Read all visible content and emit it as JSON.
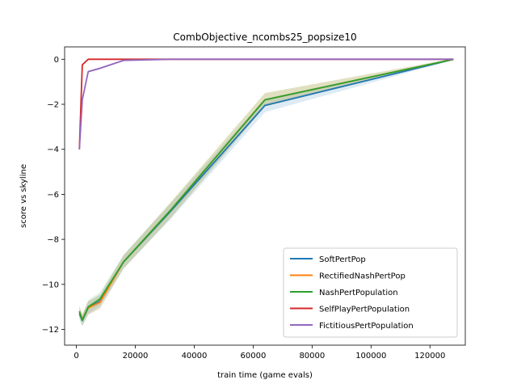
{
  "chart_data": {
    "type": "line",
    "title": "CombObjective_ncombs25_popsize10",
    "xlabel": "train time (game evals)",
    "ylabel": "score vs skyline",
    "xlim": [
      -4000,
      132000
    ],
    "ylim": [
      -12.7,
      0.55
    ],
    "xticks": [
      0,
      20000,
      40000,
      60000,
      80000,
      100000,
      120000
    ],
    "xtick_labels": [
      "0",
      "20000",
      "40000",
      "60000",
      "80000",
      "100000",
      "120000"
    ],
    "yticks": [
      0,
      -2,
      -4,
      -6,
      -8,
      -10,
      -12
    ],
    "ytick_labels": [
      "0",
      "−2",
      "−4",
      "−6",
      "−8",
      "−10",
      "−12"
    ],
    "grid": false,
    "legend_position": "lower-right",
    "series": [
      {
        "name": "SoftPertPop",
        "color": "#1f77b4",
        "x": [
          1000,
          2000,
          4000,
          8000,
          16000,
          32000,
          64000,
          128000
        ],
        "y": [
          -11.3,
          -11.6,
          -11.05,
          -10.75,
          -9.0,
          -6.75,
          -2.05,
          0.0
        ],
        "band": [
          0.25,
          0.25,
          0.3,
          0.3,
          0.3,
          0.35,
          0.3,
          0.03
        ]
      },
      {
        "name": "RectifiedNashPertPop",
        "color": "#ff7f0e",
        "x": [
          1000,
          2000,
          4000,
          8000,
          16000,
          32000,
          64000,
          128000
        ],
        "y": [
          -11.2,
          -11.55,
          -11.05,
          -10.8,
          -9.0,
          -6.7,
          -1.8,
          0.0
        ],
        "band": [
          0.25,
          0.25,
          0.3,
          0.3,
          0.3,
          0.35,
          0.3,
          0.03
        ]
      },
      {
        "name": "NashPertPopulation",
        "color": "#2ca02c",
        "x": [
          1000,
          2000,
          4000,
          8000,
          16000,
          32000,
          64000,
          128000
        ],
        "y": [
          -11.2,
          -11.6,
          -11.0,
          -10.65,
          -9.0,
          -6.7,
          -1.8,
          0.0
        ],
        "band": [
          0.25,
          0.25,
          0.3,
          0.3,
          0.3,
          0.35,
          0.3,
          0.03
        ]
      },
      {
        "name": "SelfPlayPertPopulation",
        "color": "#d62728",
        "x": [
          1000,
          2000,
          4000,
          8000,
          16000,
          32000,
          64000,
          128000
        ],
        "y": [
          -4.0,
          -0.25,
          0.0,
          0.0,
          0.0,
          0.0,
          0.0,
          0.0
        ],
        "band": [
          0.1,
          0.05,
          0.01,
          0.01,
          0.01,
          0.01,
          0.01,
          0.01
        ]
      },
      {
        "name": "FictitiousPertPopulation",
        "color": "#9467bd",
        "x": [
          1000,
          2000,
          4000,
          8000,
          16000,
          32000,
          64000,
          128000
        ],
        "y": [
          -4.0,
          -1.8,
          -0.55,
          -0.4,
          -0.05,
          0.0,
          0.0,
          0.0
        ],
        "band": [
          0.15,
          0.1,
          0.05,
          0.05,
          0.02,
          0.01,
          0.01,
          0.01
        ]
      }
    ]
  }
}
